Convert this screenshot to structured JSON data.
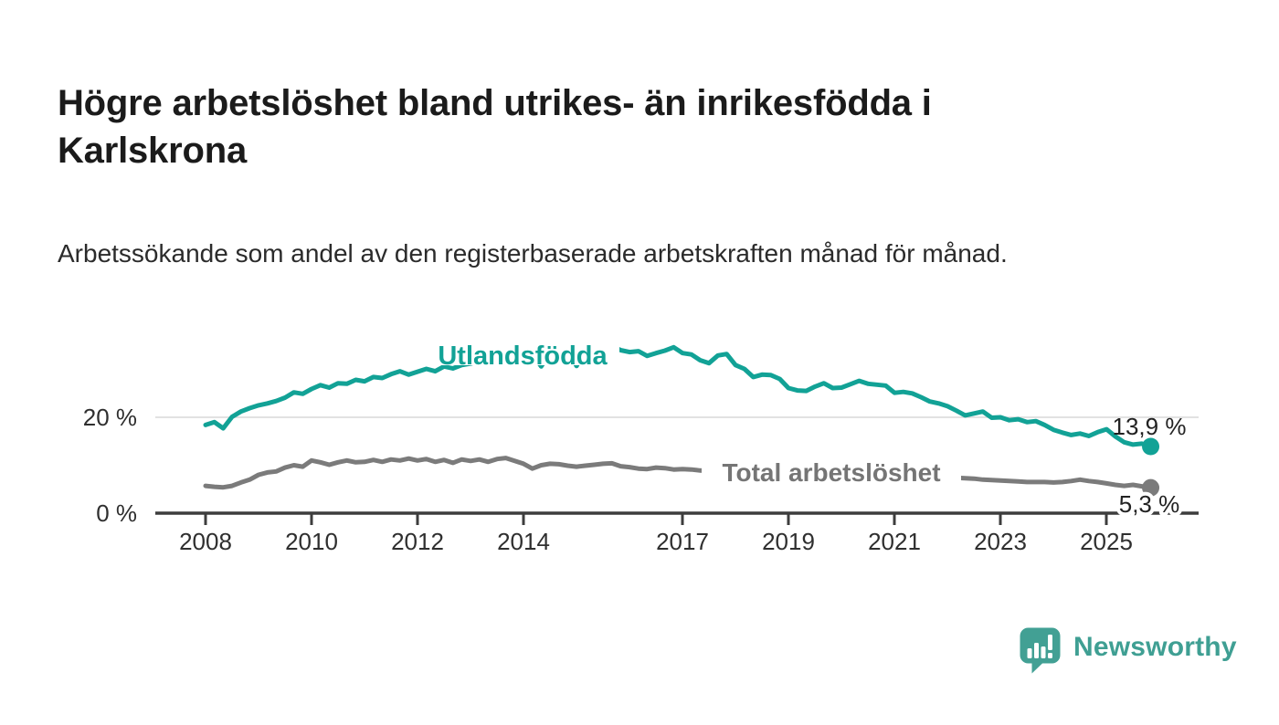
{
  "chart_data": {
    "type": "line",
    "title": "Högre arbetslöshet bland utrikes- än inrikesfödda i Karlskrona",
    "subtitle": "Arbetssökande som andel av den registerbaserade arbetskraften månad för månad.",
    "x_unit": "year",
    "x_start": 2008.0,
    "x_step": 0.1667,
    "x_ticks": [
      "2008",
      "2010",
      "2012",
      "2014",
      "2017",
      "2019",
      "2021",
      "2023",
      "2025"
    ],
    "x_tick_years": [
      2008,
      2010,
      2012,
      2014,
      2017,
      2019,
      2021,
      2023,
      2025
    ],
    "y_ticks": [
      {
        "value": 0,
        "label": "0 %"
      },
      {
        "value": 20,
        "label": "20 %"
      }
    ],
    "ylim": [
      0,
      38
    ],
    "grid": "single horizontal gridline at 20 %",
    "legend_position": "inline labels on lines",
    "series": [
      {
        "name": "Utlandsfödda",
        "color": "#12a296",
        "end_label": "13,9 %",
        "last_value": 13.9,
        "values": [
          18.4,
          19.0,
          17.7,
          20.1,
          21.2,
          21.9,
          22.5,
          22.9,
          23.4,
          24.1,
          25.2,
          24.9,
          25.9,
          26.7,
          26.2,
          27.1,
          27.0,
          27.8,
          27.5,
          28.4,
          28.2,
          29.0,
          29.6,
          28.9,
          29.5,
          30.1,
          29.6,
          30.6,
          30.2,
          30.9,
          31.2,
          31.8,
          32.3,
          32.0,
          32.7,
          33.0,
          32.6,
          33.2,
          30.6,
          33.4,
          33.8,
          34.0,
          30.7,
          34.2,
          34.1,
          34.6,
          34.9,
          34.0,
          33.6,
          33.8,
          32.8,
          33.4,
          33.9,
          34.6,
          33.4,
          33.1,
          31.9,
          31.3,
          32.9,
          33.2,
          30.9,
          30.1,
          28.4,
          28.9,
          28.8,
          28.0,
          26.1,
          25.6,
          25.5,
          26.4,
          27.1,
          26.1,
          26.2,
          26.9,
          27.6,
          27.0,
          26.8,
          26.6,
          25.1,
          25.3,
          25.0,
          24.2,
          23.3,
          22.9,
          22.3,
          21.4,
          20.4,
          20.8,
          21.2,
          19.9,
          20.0,
          19.4,
          19.6,
          19.0,
          19.2,
          18.4,
          17.4,
          16.8,
          16.3,
          16.6,
          16.1,
          16.9,
          17.5,
          16.0,
          14.8,
          14.3,
          14.5,
          13.9
        ]
      },
      {
        "name": "Total arbetslöshet",
        "color": "#7b7b7b",
        "end_label": "5,3 %",
        "last_value": 5.3,
        "values": [
          5.7,
          5.5,
          5.4,
          5.7,
          6.4,
          7.0,
          8.0,
          8.5,
          8.7,
          9.5,
          10.0,
          9.7,
          11.0,
          10.6,
          10.1,
          10.6,
          11.0,
          10.6,
          10.7,
          11.1,
          10.7,
          11.2,
          11.0,
          11.4,
          11.0,
          11.3,
          10.7,
          11.1,
          10.5,
          11.2,
          10.9,
          11.2,
          10.7,
          11.3,
          11.5,
          10.9,
          10.3,
          9.3,
          10.0,
          10.3,
          10.2,
          9.9,
          9.7,
          9.9,
          10.1,
          10.3,
          10.4,
          9.8,
          9.6,
          9.3,
          9.2,
          9.5,
          9.4,
          9.1,
          9.2,
          9.1,
          8.9,
          8.8,
          8.7,
          8.5,
          8.4,
          8.3,
          8.1,
          8.0,
          7.9,
          7.8,
          7.7,
          7.6,
          7.5,
          7.5,
          7.4,
          7.4,
          7.5,
          8.2,
          9.4,
          9.6,
          9.3,
          9.0,
          8.8,
          8.6,
          8.3,
          8.0,
          7.8,
          7.6,
          7.5,
          7.4,
          7.3,
          7.2,
          7.0,
          6.9,
          6.8,
          6.7,
          6.6,
          6.5,
          6.5,
          6.5,
          6.4,
          6.5,
          6.7,
          7.0,
          6.7,
          6.5,
          6.2,
          5.9,
          5.7,
          5.9,
          5.6,
          5.3
        ]
      }
    ],
    "colors": {
      "accent_teal": "#12a296",
      "series_gray": "#7b7b7b",
      "axis": "#3d3d3d",
      "grid": "#d9d9d9",
      "value_label": "#222222"
    }
  },
  "footer": {
    "brand": "Newsworthy",
    "brand_color": "#3f9f93"
  }
}
